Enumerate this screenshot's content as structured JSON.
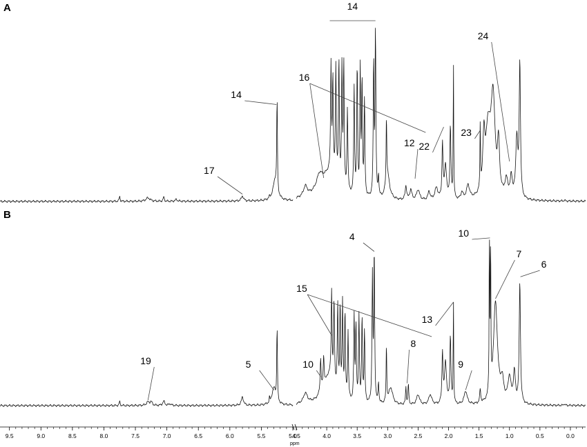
{
  "panels": [
    {
      "letter": "A",
      "baseline_y": 292,
      "amp": 250,
      "annotations": [
        {
          "text": "14",
          "bracket": true,
          "from": 3.95,
          "to": 3.2
        },
        {
          "text": "24",
          "peak": 1.0,
          "tipH": 0.22
        },
        {
          "text": "16",
          "peak": 4.05,
          "tipH": 0.12,
          "elbow": 3.85
        },
        {
          "text": "14",
          "peak": 5.26,
          "tipH": 0.55
        },
        {
          "text": "22",
          "peak": 2.08,
          "tipH": 0.42
        },
        {
          "text": "23",
          "peak": 1.48,
          "tipH": 0.4
        },
        {
          "text": "12",
          "peak": 2.55,
          "tipH": 0.12
        },
        {
          "text": "17",
          "peak": 5.8,
          "tipH": 0.03
        }
      ]
    },
    {
      "letter": "B",
      "baseline_y": 588,
      "amp": 245,
      "annotations": [
        {
          "text": "4",
          "peak": 3.22,
          "tipH": 0.9
        },
        {
          "text": "10",
          "peak": 1.32,
          "tipH": 0.98
        },
        {
          "text": "7",
          "peak": 1.23,
          "tipH": 0.62
        },
        {
          "text": "6",
          "peak": 0.82,
          "tipH": 0.75
        },
        {
          "text": "15",
          "peak": 3.92,
          "tipH": 0.4,
          "elbow": 3.75
        },
        {
          "text": "13",
          "peak": 1.92,
          "tipH": 0.6
        },
        {
          "text": "8",
          "peak": 2.68,
          "tipH": 0.12
        },
        {
          "text": "10",
          "peak": 4.1,
          "tipH": 0.16
        },
        {
          "text": "9",
          "peak": 1.72,
          "tipH": 0.08
        },
        {
          "text": "5",
          "peak": 5.3,
          "tipH": 0.08
        },
        {
          "text": "19",
          "peak": 7.3,
          "tipH": 0.02
        }
      ]
    }
  ],
  "chart_data": {
    "type": "line",
    "title": "",
    "xlabel": "ppm",
    "ylabel": "",
    "x_reversed": true,
    "axis_break": [
      5.0,
      4.5
    ],
    "segments": [
      {
        "from": 9.65,
        "to": 5.0
      },
      {
        "from": 4.5,
        "to": -0.25
      }
    ],
    "xticks_left": [
      9.5,
      9.0,
      8.5,
      8.0,
      7.5,
      7.0,
      6.5,
      6.0,
      5.5,
      5.0
    ],
    "xticks_right": [
      4.5,
      4.0,
      3.5,
      3.0,
      2.5,
      2.0,
      1.5,
      1.0,
      0.5,
      0.0
    ],
    "tick_labels_left": [
      "9.5",
      "9.0",
      "8.5",
      "8.0",
      "7.5",
      "7.0",
      "6.5",
      "6.0",
      "5.5",
      "5.0"
    ],
    "tick_labels_right": [
      "4.5",
      "4.0",
      "3.5",
      "3.0",
      "2.5",
      "2.0",
      "1.5",
      "1.0",
      "0.5",
      "0.0"
    ],
    "series": [
      {
        "panel": "A",
        "peaks": [
          [
            7.75,
            0.03,
            0.008
          ],
          [
            7.3,
            0.02,
            0.04
          ],
          [
            7.05,
            0.025,
            0.01
          ],
          [
            6.85,
            0.01,
            0.02
          ],
          [
            5.8,
            0.03,
            0.02
          ],
          [
            5.37,
            0.01,
            0.01
          ],
          [
            5.28,
            0.12,
            0.04
          ],
          [
            5.25,
            0.55,
            0.006
          ],
          [
            4.35,
            0.06,
            0.04
          ],
          [
            4.12,
            0.08,
            0.06
          ],
          [
            3.95,
            0.16,
            0.18
          ],
          [
            3.93,
            0.62,
            0.008
          ],
          [
            3.9,
            0.55,
            0.008
          ],
          [
            3.85,
            0.65,
            0.008
          ],
          [
            3.8,
            0.72,
            0.008
          ],
          [
            3.75,
            0.68,
            0.008
          ],
          [
            3.72,
            0.72,
            0.008
          ],
          [
            3.66,
            0.48,
            0.008
          ],
          [
            3.55,
            0.62,
            0.008
          ],
          [
            3.5,
            0.75,
            0.008
          ],
          [
            3.45,
            0.72,
            0.008
          ],
          [
            3.42,
            0.66,
            0.008
          ],
          [
            3.38,
            0.55,
            0.008
          ],
          [
            3.23,
            0.78,
            0.008
          ],
          [
            3.2,
            0.97,
            0.008
          ],
          [
            3.15,
            0.12,
            0.008
          ],
          [
            3.02,
            0.4,
            0.006
          ],
          [
            3.0,
            0.14,
            0.04
          ],
          [
            2.7,
            0.08,
            0.015
          ],
          [
            2.62,
            0.06,
            0.02
          ],
          [
            2.5,
            0.06,
            0.03
          ],
          [
            2.32,
            0.05,
            0.02
          ],
          [
            2.2,
            0.07,
            0.03
          ],
          [
            2.1,
            0.32,
            0.01
          ],
          [
            2.05,
            0.2,
            0.02
          ],
          [
            1.97,
            0.42,
            0.01
          ],
          [
            1.92,
            0.78,
            0.005
          ],
          [
            1.78,
            0.04,
            0.02
          ],
          [
            1.68,
            0.08,
            0.03
          ],
          [
            1.48,
            0.38,
            0.005
          ],
          [
            1.42,
            0.3,
            0.02
          ],
          [
            1.35,
            0.38,
            0.05
          ],
          [
            1.27,
            0.55,
            0.04
          ],
          [
            1.18,
            0.28,
            0.02
          ],
          [
            1.05,
            0.1,
            0.03
          ],
          [
            0.97,
            0.12,
            0.02
          ],
          [
            0.88,
            0.35,
            0.02
          ],
          [
            0.83,
            0.78,
            0.012
          ],
          [
            0.1,
            0.005,
            0.01
          ]
        ]
      },
      {
        "panel": "B",
        "peaks": [
          [
            7.75,
            0.025,
            0.008
          ],
          [
            7.3,
            0.02,
            0.03
          ],
          [
            7.25,
            0.02,
            0.02
          ],
          [
            7.05,
            0.025,
            0.02
          ],
          [
            6.95,
            0.01,
            0.02
          ],
          [
            5.8,
            0.05,
            0.02
          ],
          [
            5.37,
            0.03,
            0.005
          ],
          [
            5.3,
            0.1,
            0.04
          ],
          [
            5.25,
            0.45,
            0.006
          ],
          [
            4.35,
            0.06,
            0.04
          ],
          [
            4.1,
            0.2,
            0.01
          ],
          [
            4.05,
            0.18,
            0.01
          ],
          [
            3.95,
            0.18,
            0.12
          ],
          [
            3.92,
            0.5,
            0.008
          ],
          [
            3.88,
            0.48,
            0.008
          ],
          [
            3.82,
            0.5,
            0.008
          ],
          [
            3.78,
            0.52,
            0.008
          ],
          [
            3.74,
            0.55,
            0.008
          ],
          [
            3.7,
            0.5,
            0.008
          ],
          [
            3.65,
            0.4,
            0.008
          ],
          [
            3.55,
            0.5,
            0.008
          ],
          [
            3.52,
            0.45,
            0.008
          ],
          [
            3.47,
            0.52,
            0.008
          ],
          [
            3.42,
            0.5,
            0.008
          ],
          [
            3.38,
            0.42,
            0.008
          ],
          [
            3.25,
            0.75,
            0.008
          ],
          [
            3.22,
            0.9,
            0.008
          ],
          [
            3.15,
            0.12,
            0.008
          ],
          [
            3.02,
            0.35,
            0.006
          ],
          [
            2.95,
            0.1,
            0.04
          ],
          [
            2.7,
            0.1,
            0.008
          ],
          [
            2.66,
            0.12,
            0.008
          ],
          [
            2.5,
            0.06,
            0.03
          ],
          [
            2.3,
            0.06,
            0.03
          ],
          [
            2.1,
            0.3,
            0.01
          ],
          [
            2.05,
            0.25,
            0.02
          ],
          [
            1.97,
            0.4,
            0.01
          ],
          [
            1.92,
            0.6,
            0.005
          ],
          [
            1.72,
            0.08,
            0.03
          ],
          [
            1.48,
            0.08,
            0.01
          ],
          [
            1.33,
            0.95,
            0.005
          ],
          [
            1.31,
            0.9,
            0.005
          ],
          [
            1.23,
            0.6,
            0.04
          ],
          [
            1.12,
            0.12,
            0.03
          ],
          [
            1.0,
            0.15,
            0.03
          ],
          [
            0.92,
            0.18,
            0.02
          ],
          [
            0.83,
            0.72,
            0.012
          ],
          [
            0.1,
            0.01,
            0.01
          ]
        ]
      }
    ]
  }
}
